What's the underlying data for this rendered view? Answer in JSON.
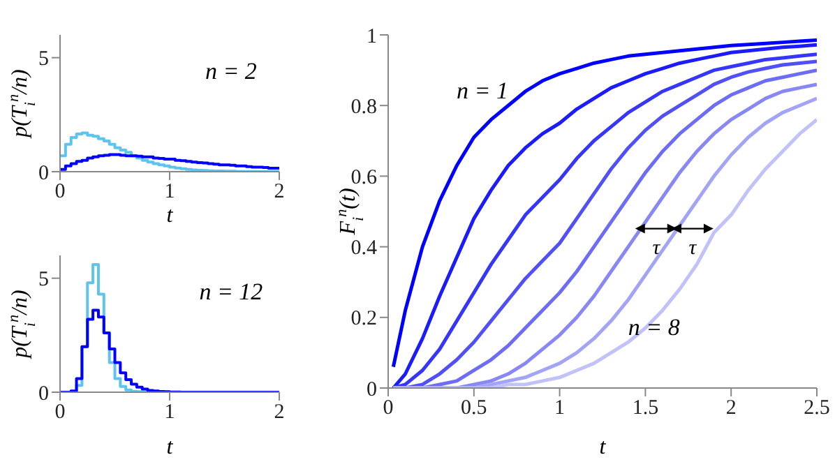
{
  "chart_data": [
    {
      "type": "histogram",
      "bins": [
        0,
        0.05,
        0.1,
        0.15,
        0.2,
        0.25,
        0.3,
        0.35,
        0.4,
        0.45,
        0.5,
        0.55,
        0.6,
        0.65,
        0.7,
        0.75,
        0.8,
        0.85,
        0.9,
        0.95,
        1,
        1.05,
        1.1,
        1.15,
        1.2,
        1.25,
        1.3,
        1.35,
        1.4,
        1.45,
        1.5,
        1.55,
        1.6,
        1.65,
        1.7,
        1.75,
        1.8,
        1.85,
        1.9,
        1.95,
        2
      ],
      "series": [
        {
          "color": "#5ec4ee",
          "values": [
            0.7,
            1.2,
            1.5,
            1.65,
            1.7,
            1.6,
            1.55,
            1.45,
            1.35,
            1.2,
            1.05,
            0.95,
            0.85,
            0.7,
            0.6,
            0.5,
            0.42,
            0.35,
            0.3,
            0.25,
            0.2,
            0.16,
            0.13,
            0.1,
            0.08,
            0.06,
            0.05,
            0.04,
            0.03,
            0.03,
            0.02,
            0.02,
            0.01,
            0.01,
            0.01,
            0.01,
            0,
            0,
            0,
            0
          ]
        },
        {
          "color": "#0000ff",
          "values": [
            0.1,
            0.25,
            0.35,
            0.45,
            0.5,
            0.6,
            0.65,
            0.7,
            0.72,
            0.75,
            0.75,
            0.72,
            0.7,
            0.7,
            0.68,
            0.65,
            0.65,
            0.6,
            0.58,
            0.55,
            0.55,
            0.5,
            0.48,
            0.45,
            0.42,
            0.4,
            0.38,
            0.35,
            0.33,
            0.3,
            0.3,
            0.28,
            0.25,
            0.25,
            0.22,
            0.2,
            0.2,
            0.18,
            0.15,
            0.15
          ]
        }
      ],
      "xlim": [
        0,
        2
      ],
      "ylim": [
        0,
        6
      ],
      "xticks": [
        0,
        1,
        2
      ],
      "yticks": [
        0,
        5
      ],
      "xlabel": "t",
      "ylabel": "p(T$_{i}$$^{n}$/n)",
      "annotations": [
        "n = 2"
      ]
    },
    {
      "type": "histogram",
      "bins": [
        0,
        0.05,
        0.1,
        0.15,
        0.2,
        0.25,
        0.3,
        0.35,
        0.4,
        0.45,
        0.5,
        0.55,
        0.6,
        0.65,
        0.7,
        0.75,
        0.8,
        0.85,
        0.9,
        0.95,
        1,
        1.05,
        1.1,
        1.15,
        1.2,
        1.25,
        1.3,
        1.35,
        1.4,
        1.45,
        1.5,
        1.55,
        1.6,
        1.65,
        1.7,
        1.75,
        1.8,
        1.85,
        1.9,
        1.95,
        2
      ],
      "series": [
        {
          "color": "#5ec4ee",
          "values": [
            0,
            0,
            0.02,
            0.3,
            2,
            4.8,
            5.6,
            4.3,
            2.6,
            1.3,
            0.6,
            0.25,
            0.1,
            0.04,
            0.02,
            0.01,
            0.01,
            0,
            0,
            0,
            0,
            0,
            0,
            0,
            0,
            0,
            0,
            0,
            0,
            0,
            0,
            0,
            0,
            0,
            0,
            0,
            0,
            0,
            0,
            0
          ]
        },
        {
          "color": "#0000ff",
          "values": [
            0,
            0,
            0.05,
            0.6,
            2,
            3.2,
            3.6,
            3.3,
            2.6,
            1.9,
            1.3,
            0.85,
            0.55,
            0.35,
            0.22,
            0.14,
            0.08,
            0.05,
            0.03,
            0.02,
            0.01,
            0.01,
            0,
            0,
            0,
            0,
            0,
            0,
            0,
            0,
            0,
            0,
            0,
            0,
            0,
            0,
            0,
            0,
            0,
            0
          ]
        }
      ],
      "xlim": [
        0,
        2
      ],
      "ylim": [
        0,
        6
      ],
      "xticks": [
        0,
        1,
        2
      ],
      "yticks": [
        0,
        5
      ],
      "xlabel": "t",
      "ylabel": "p(T$_{i}$$^{n}$/n)",
      "annotations": [
        "n = 12"
      ]
    },
    {
      "type": "line",
      "x": [
        0.03,
        0.1,
        0.2,
        0.3,
        0.4,
        0.5,
        0.6,
        0.7,
        0.8,
        0.9,
        1,
        1.1,
        1.2,
        1.3,
        1.4,
        1.5,
        1.6,
        1.7,
        1.8,
        1.9,
        2,
        2.1,
        2.2,
        2.3,
        2.4,
        2.5
      ],
      "series": [
        {
          "color": "#0000ff",
          "values": [
            0.06,
            0.22,
            0.4,
            0.53,
            0.63,
            0.71,
            0.76,
            0.8,
            0.84,
            0.87,
            0.89,
            0.905,
            0.92,
            0.93,
            0.94,
            0.945,
            0.95,
            0.955,
            0.96,
            0.965,
            0.97,
            0.973,
            0.976,
            0.979,
            0.982,
            0.985
          ]
        },
        {
          "color": "#1c1cfb",
          "values": [
            0,
            0.04,
            0.14,
            0.26,
            0.37,
            0.48,
            0.56,
            0.63,
            0.68,
            0.72,
            0.75,
            0.79,
            0.82,
            0.85,
            0.87,
            0.89,
            0.905,
            0.92,
            0.93,
            0.94,
            0.95,
            0.955,
            0.96,
            0.965,
            0.968,
            0.972
          ]
        },
        {
          "color": "#3636f8",
          "values": [
            0,
            0.01,
            0.05,
            0.11,
            0.19,
            0.27,
            0.35,
            0.42,
            0.49,
            0.54,
            0.59,
            0.65,
            0.7,
            0.74,
            0.78,
            0.81,
            0.84,
            0.86,
            0.88,
            0.9,
            0.91,
            0.92,
            0.93,
            0.935,
            0.94,
            0.945
          ]
        },
        {
          "color": "#5050f6",
          "values": [
            0,
            0,
            0.01,
            0.04,
            0.08,
            0.13,
            0.19,
            0.25,
            0.31,
            0.36,
            0.41,
            0.48,
            0.55,
            0.62,
            0.68,
            0.73,
            0.77,
            0.8,
            0.83,
            0.86,
            0.88,
            0.895,
            0.905,
            0.915,
            0.92,
            0.925
          ]
        },
        {
          "color": "#6c6cf4",
          "values": [
            0,
            0,
            0,
            0.01,
            0.02,
            0.05,
            0.08,
            0.12,
            0.17,
            0.22,
            0.27,
            0.33,
            0.4,
            0.47,
            0.54,
            0.61,
            0.67,
            0.72,
            0.76,
            0.8,
            0.83,
            0.85,
            0.87,
            0.88,
            0.89,
            0.9
          ]
        },
        {
          "color": "#8888f5",
          "values": [
            0,
            0,
            0,
            0,
            0,
            0.01,
            0.02,
            0.04,
            0.07,
            0.11,
            0.15,
            0.2,
            0.26,
            0.33,
            0.4,
            0.47,
            0.54,
            0.61,
            0.67,
            0.72,
            0.76,
            0.79,
            0.82,
            0.84,
            0.85,
            0.86
          ]
        },
        {
          "color": "#a4a4f7",
          "values": [
            0,
            0,
            0,
            0,
            0,
            0,
            0.01,
            0.02,
            0.03,
            0.05,
            0.07,
            0.1,
            0.14,
            0.19,
            0.25,
            0.32,
            0.39,
            0.46,
            0.53,
            0.6,
            0.66,
            0.71,
            0.75,
            0.78,
            0.8,
            0.82
          ]
        },
        {
          "color": "#c2c2fa",
          "values": [
            0,
            0,
            0,
            0,
            0,
            0,
            0,
            0.01,
            0.01,
            0.02,
            0.03,
            0.05,
            0.07,
            0.1,
            0.13,
            0.17,
            0.22,
            0.28,
            0.35,
            0.44,
            0.49,
            0.56,
            0.62,
            0.67,
            0.72,
            0.76
          ]
        }
      ],
      "xlim": [
        0,
        2.5
      ],
      "ylim": [
        0,
        1
      ],
      "xticks": [
        0,
        0.5,
        1,
        1.5,
        2,
        2.5
      ],
      "yticks": [
        0,
        0.2,
        0.4,
        0.6,
        0.8,
        1
      ],
      "xlabel": "t",
      "ylabel": "F$_{i}$$^{n}$(t)",
      "annotations": [
        "n = 1",
        "n = 8",
        "τ",
        "τ"
      ]
    }
  ]
}
